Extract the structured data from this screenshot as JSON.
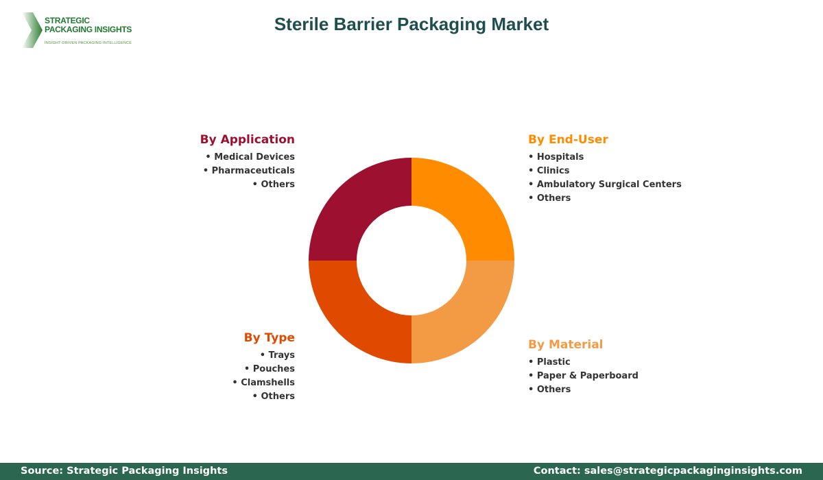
{
  "logo": {
    "line1": "STRATEGIC",
    "line2": "PACKAGING INSIGHTS",
    "tagline": "INSIGHT-DRIVEN PACKAGING INTELLIGENCE"
  },
  "title": "Sterile Barrier Packaging Market",
  "chart_data": {
    "type": "pie",
    "style": "donut",
    "segments": [
      {
        "label": "By End-User",
        "value": 25,
        "color": "#FF8C00",
        "items": [
          "Hospitals",
          "Clinics",
          "Ambulatory Surgical Centers",
          "Others"
        ]
      },
      {
        "label": "By Material",
        "value": 25,
        "color": "#F39A45",
        "items": [
          "Plastic",
          "Paper & Paperboard",
          "Others"
        ]
      },
      {
        "label": "By Type",
        "value": 25,
        "color": "#E04A00",
        "items": [
          "Trays",
          "Pouches",
          "Clamshells",
          "Others"
        ]
      },
      {
        "label": "By Application",
        "value": 25,
        "color": "#9E1030",
        "items": [
          "Medical Devices",
          "Pharmaceuticals",
          "Others"
        ]
      }
    ]
  },
  "footer": {
    "source": "Source: Strategic Packaging Insights",
    "contact": "Contact: sales@strategicpackaginginsights.com"
  }
}
